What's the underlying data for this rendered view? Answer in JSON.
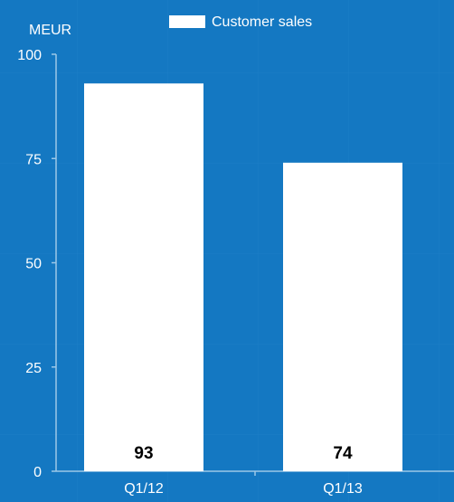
{
  "chart_data": {
    "type": "bar",
    "categories": [
      "Q1/12",
      "Q1/13"
    ],
    "series": [
      {
        "name": "Customer sales",
        "values": [
          93,
          74
        ]
      }
    ],
    "data_labels": [
      "93",
      "74"
    ],
    "ylabel": "MEUR",
    "ylim": [
      0,
      100
    ],
    "yticks": [
      0,
      25,
      50,
      75,
      100
    ],
    "ytick_labels": [
      "0",
      "25",
      "50",
      "75",
      "100"
    ],
    "legend": {
      "entries": [
        "Customer sales"
      ],
      "placement": "top-center"
    },
    "grid": false,
    "colors": {
      "background": "#1478c2",
      "bar": "#ffffff",
      "axis": "#9cc8e8",
      "text": "#ffffff",
      "data_label": "#000000"
    }
  }
}
